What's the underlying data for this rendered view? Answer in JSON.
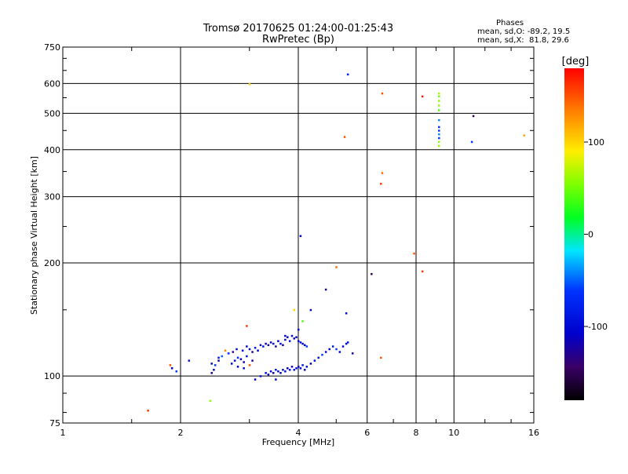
{
  "title": "Tromsø 20170625 01:24:00-01:25:43",
  "subtitle": "RwPretec (Bp)",
  "phases": {
    "heading": "Phases",
    "line_o": "mean, sd,O: -89.2, 19.5",
    "line_x": "mean, sd,X:  81.8, 29.6"
  },
  "chart_data": {
    "type": "scatter",
    "xlabel": "Frequency [MHz]",
    "ylabel": "Stationary phase Virtual Height [km]",
    "xscale": "log",
    "yscale": "log",
    "xlim": [
      1,
      16
    ],
    "ylim": [
      75,
      750
    ],
    "xticks": [
      1,
      2,
      4,
      6,
      8,
      10,
      16
    ],
    "yticks": [
      75,
      100,
      200,
      300,
      400,
      500,
      600,
      750
    ],
    "grid": true,
    "colorbar": {
      "label": "[deg]",
      "range": [
        -180,
        180
      ],
      "ticks": [
        -100,
        0,
        100
      ]
    },
    "points": [
      [
        1.65,
        81,
        160
      ],
      [
        1.88,
        107,
        150
      ],
      [
        1.9,
        105,
        -110
      ],
      [
        1.95,
        103,
        -60
      ],
      [
        2.1,
        110,
        -90
      ],
      [
        2.38,
        86,
        60
      ],
      [
        2.4,
        102,
        -120
      ],
      [
        2.43,
        104,
        -100
      ],
      [
        2.45,
        107,
        -60
      ],
      [
        2.5,
        110,
        -120
      ],
      [
        2.55,
        113,
        -50
      ],
      [
        2.6,
        117,
        130
      ],
      [
        2.65,
        115,
        -80
      ],
      [
        2.7,
        108,
        -110
      ],
      [
        2.75,
        110,
        -100
      ],
      [
        2.8,
        112,
        -70
      ],
      [
        2.85,
        111,
        -110
      ],
      [
        2.9,
        109,
        -120
      ],
      [
        2.95,
        113,
        -90
      ],
      [
        2.72,
        116,
        -130
      ],
      [
        2.78,
        118,
        -100
      ],
      [
        2.88,
        117,
        -90
      ],
      [
        2.95,
        120,
        -110
      ],
      [
        3.0,
        118,
        -100
      ],
      [
        3.05,
        116,
        -130
      ],
      [
        3.1,
        119,
        -90
      ],
      [
        3.15,
        117,
        -110
      ],
      [
        3.2,
        121,
        -100
      ],
      [
        3.25,
        120,
        -90
      ],
      [
        3.3,
        122,
        -120
      ],
      [
        3.35,
        121,
        -110
      ],
      [
        3.4,
        123,
        -100
      ],
      [
        3.45,
        122,
        -90
      ],
      [
        3.5,
        120,
        -130
      ],
      [
        3.55,
        124,
        -110
      ],
      [
        3.6,
        122,
        -100
      ],
      [
        3.65,
        121,
        -120
      ],
      [
        3.7,
        125,
        -100
      ],
      [
        3.75,
        127,
        -110
      ],
      [
        3.8,
        124,
        -90
      ],
      [
        3.85,
        128,
        -100
      ],
      [
        3.9,
        126,
        -120
      ],
      [
        3.95,
        127,
        -110
      ],
      [
        4.0,
        124,
        -100
      ],
      [
        4.05,
        123,
        -90
      ],
      [
        4.1,
        122,
        -110
      ],
      [
        4.15,
        121,
        -100
      ],
      [
        4.2,
        120,
        -60
      ],
      [
        2.8,
        106,
        -110
      ],
      [
        2.9,
        105,
        -100
      ],
      [
        3.0,
        107,
        150
      ],
      [
        3.05,
        110,
        -120
      ],
      [
        3.1,
        98,
        -110
      ],
      [
        3.2,
        100,
        -100
      ],
      [
        3.3,
        102,
        -90
      ],
      [
        3.35,
        101,
        -110
      ],
      [
        3.4,
        103,
        -100
      ],
      [
        3.45,
        102,
        -120
      ],
      [
        3.5,
        104,
        -90
      ],
      [
        3.55,
        103,
        -100
      ],
      [
        3.6,
        102,
        -110
      ],
      [
        3.65,
        104,
        -100
      ],
      [
        3.7,
        103,
        -90
      ],
      [
        3.75,
        105,
        -110
      ],
      [
        3.8,
        104,
        -100
      ],
      [
        3.85,
        106,
        -120
      ],
      [
        3.9,
        104,
        -90
      ],
      [
        3.95,
        105,
        -100
      ],
      [
        4.0,
        106,
        -110
      ],
      [
        4.05,
        105,
        -100
      ],
      [
        4.1,
        107,
        -90
      ],
      [
        4.15,
        104,
        -110
      ],
      [
        4.2,
        106,
        -100
      ],
      [
        4.3,
        108,
        -110
      ],
      [
        4.4,
        110,
        -100
      ],
      [
        4.5,
        112,
        -90
      ],
      [
        4.6,
        114,
        -60
      ],
      [
        4.7,
        116,
        -100
      ],
      [
        4.8,
        118,
        -110
      ],
      [
        4.9,
        120,
        -90
      ],
      [
        5.0,
        118,
        -60
      ],
      [
        5.1,
        116,
        -100
      ],
      [
        5.2,
        120,
        -100
      ],
      [
        5.3,
        122,
        -110
      ],
      [
        5.35,
        123,
        -90
      ],
      [
        5.5,
        115,
        -130
      ],
      [
        2.4,
        108,
        -100
      ],
      [
        2.5,
        112,
        -90
      ],
      [
        2.65,
        115,
        -60
      ],
      [
        2.95,
        136,
        160
      ],
      [
        3.5,
        98,
        -100
      ],
      [
        3.7,
        128,
        -110
      ],
      [
        3.9,
        150,
        100
      ],
      [
        4.0,
        133,
        -100
      ],
      [
        4.1,
        140,
        40
      ],
      [
        4.3,
        150,
        -100
      ],
      [
        4.7,
        170,
        -130
      ],
      [
        5.0,
        195,
        140
      ],
      [
        5.3,
        147,
        -100
      ],
      [
        4.05,
        236,
        -110
      ],
      [
        5.25,
        433,
        150
      ],
      [
        5.35,
        635,
        -80
      ],
      [
        6.15,
        187,
        -150
      ],
      [
        6.5,
        112,
        150
      ],
      [
        6.5,
        325,
        160
      ],
      [
        6.55,
        347,
        140
      ],
      [
        6.55,
        565,
        150
      ],
      [
        7.9,
        212,
        150
      ],
      [
        8.3,
        190,
        160
      ],
      [
        8.3,
        555,
        170
      ],
      [
        9.15,
        410,
        60
      ],
      [
        9.15,
        420,
        60
      ],
      [
        9.15,
        430,
        -60
      ],
      [
        9.15,
        440,
        -40
      ],
      [
        9.15,
        450,
        -60
      ],
      [
        9.15,
        460,
        -70
      ],
      [
        9.15,
        480,
        -40
      ],
      [
        9.15,
        510,
        40
      ],
      [
        9.15,
        525,
        60
      ],
      [
        9.15,
        540,
        60
      ],
      [
        9.15,
        555,
        50
      ],
      [
        9.15,
        565,
        60
      ],
      [
        11.1,
        420,
        -60
      ],
      [
        11.2,
        492,
        -150
      ],
      [
        15.1,
        437,
        120
      ],
      [
        3.0,
        598,
        100
      ]
    ]
  }
}
